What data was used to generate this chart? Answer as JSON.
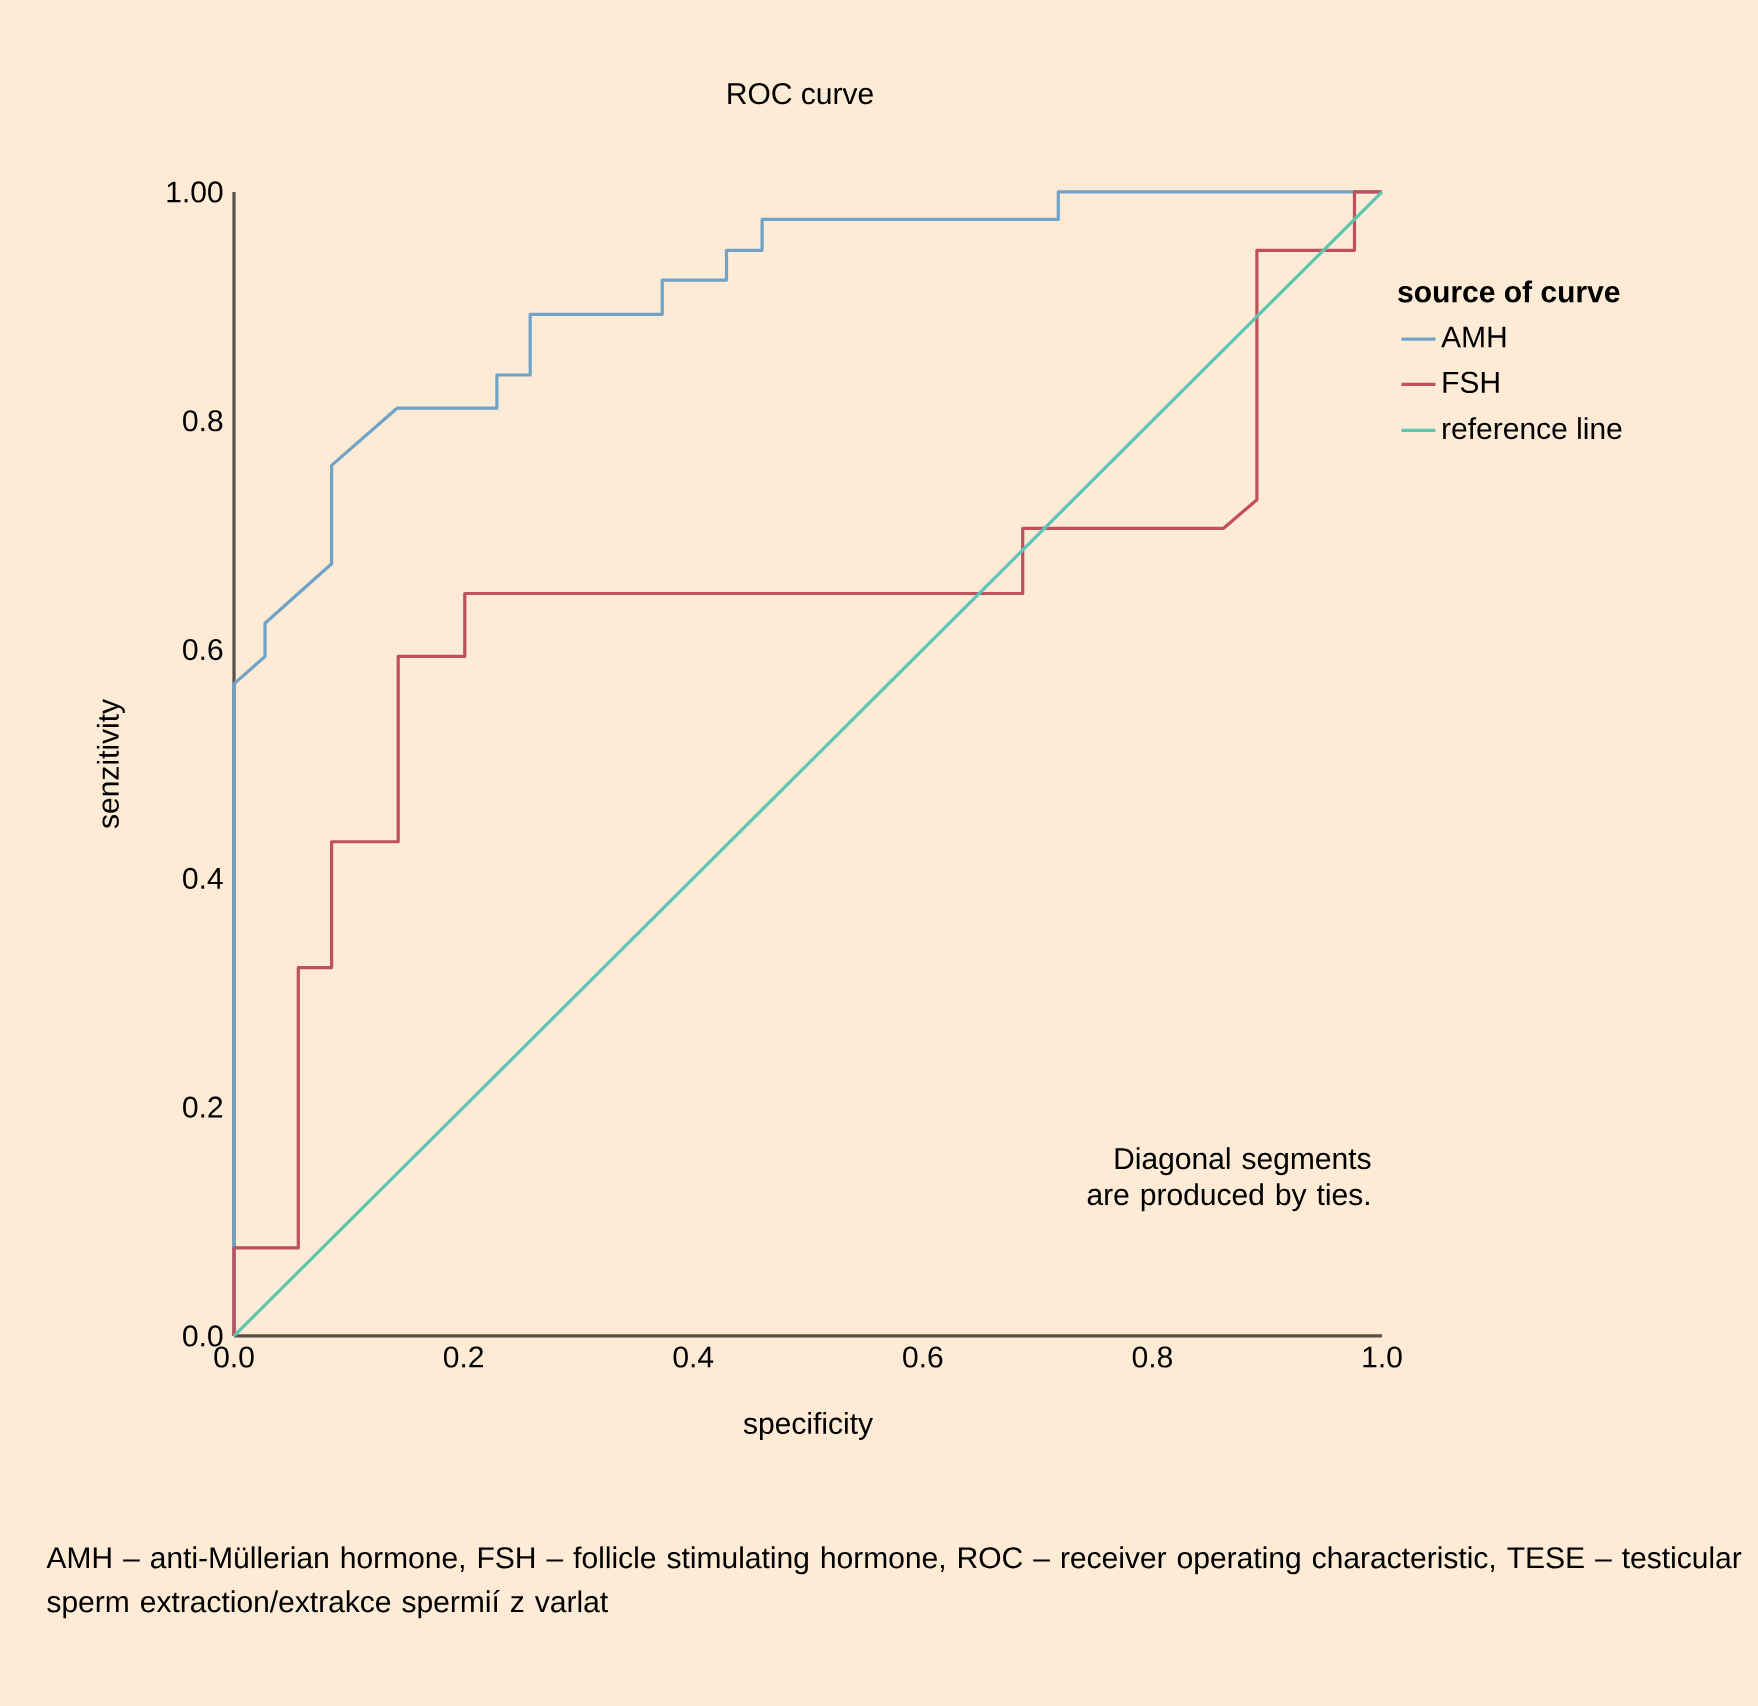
{
  "chart_data": {
    "type": "line",
    "title": "ROC curve",
    "xlabel": "specificity",
    "ylabel": "senzitivity",
    "legend_title": "source of curve",
    "series": [
      {
        "name": "AMH",
        "color": "#6fa3c8",
        "x": [
          0,
          0,
          0.027,
          0.027,
          0.085,
          0.085,
          0.142,
          0.229,
          0.229,
          0.258,
          0.258,
          0.373,
          0.373,
          0.429,
          0.429,
          0.46,
          0.46,
          0.718,
          0.718,
          1.0
        ],
        "values": [
          0,
          0.57,
          0.594,
          0.623,
          0.675,
          0.761,
          0.811,
          0.811,
          0.84,
          0.84,
          0.893,
          0.893,
          0.923,
          0.923,
          0.949,
          0.949,
          0.976,
          0.976,
          1.0,
          1.0
        ]
      },
      {
        "name": "FSH",
        "color": "#c0505a",
        "x": [
          0,
          0,
          0.056,
          0.056,
          0.085,
          0.085,
          0.143,
          0.143,
          0.201,
          0.201,
          0.687,
          0.687,
          0.862,
          0.891,
          0.891,
          0.976,
          0.976,
          1.0
        ],
        "values": [
          0,
          0.077,
          0.077,
          0.322,
          0.322,
          0.432,
          0.432,
          0.594,
          0.594,
          0.649,
          0.649,
          0.706,
          0.706,
          0.731,
          0.949,
          0.949,
          1.0,
          1.0
        ]
      },
      {
        "name": "reference line",
        "color": "#5ec4b4",
        "x": [
          0,
          1
        ],
        "values": [
          0,
          1
        ]
      }
    ],
    "xlim": [
      0,
      1
    ],
    "ylim": [
      0,
      1
    ],
    "xticks": [
      {
        "value": 0,
        "label": "0.0"
      },
      0.2,
      0.4,
      0.6,
      0.8,
      {
        "value": 1,
        "label": "1.0"
      }
    ],
    "yticks": [
      {
        "value": 0,
        "label": "0.0"
      },
      0.2,
      0.4,
      0.6,
      0.8,
      {
        "value": 1,
        "label": "1.00"
      }
    ],
    "annotations": [
      "Diagonal segments are produced by ties.",
      "AMH – anti-Müllerian hormone, FSH – follicle stimulating hormone, ROC – receiver operating characteristic, TESE – testicular sperm extraction/extrakce spermií z varlat"
    ],
    "legend": "right",
    "grid": false,
    "marker": "none",
    "line_style": "solid"
  }
}
